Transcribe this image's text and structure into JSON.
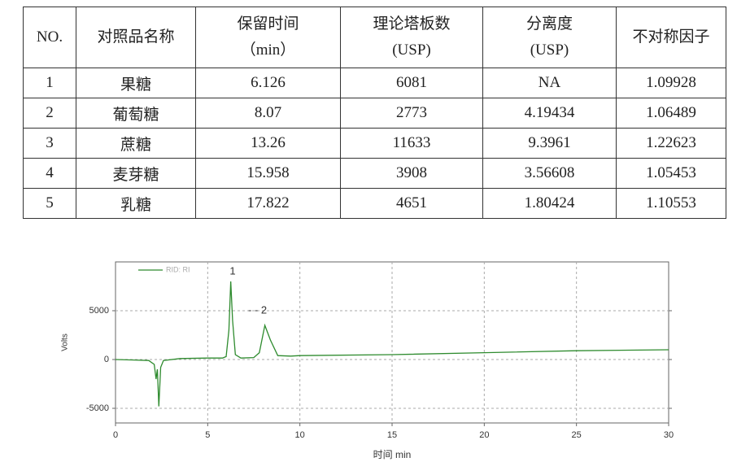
{
  "table": {
    "header": [
      [
        "NO."
      ],
      [
        "对照品名称"
      ],
      [
        "保留时间",
        "（min）"
      ],
      [
        "理论塔板数",
        "(USP)"
      ],
      [
        "分离度",
        "(USP)"
      ],
      [
        "不对称因子"
      ]
    ],
    "rows": [
      [
        "1",
        "果糖",
        "6.126",
        "6081",
        "NA",
        "1.09928"
      ],
      [
        "2",
        "葡萄糖",
        "8.07",
        "2773",
        "4.19434",
        "1.06489"
      ],
      [
        "3",
        "蔗糖",
        "13.26",
        "11633",
        "9.3961",
        "1.22623"
      ],
      [
        "4",
        "麦芽糖",
        "15.958",
        "3908",
        "3.56608",
        "1.05453"
      ],
      [
        "5",
        "乳糖",
        "17.822",
        "4651",
        "1.80424",
        "1.10553"
      ]
    ]
  },
  "chart_data": {
    "type": "line",
    "x_label": "时间 min",
    "y_label": "Volts",
    "annotations": [
      "1",
      "- - 2"
    ],
    "x": [
      0,
      1,
      1.8,
      2.1,
      2.2,
      2.27,
      2.35,
      2.45,
      2.6,
      3.5,
      5,
      5.8,
      6.0,
      6.15,
      6.25,
      6.35,
      6.5,
      6.8,
      7.5,
      7.8,
      8.1,
      8.4,
      8.8,
      9.5,
      10,
      15,
      20,
      25,
      30
    ],
    "series": [
      {
        "name": "RID: RI",
        "color": "#2e8b2e",
        "values": [
          0,
          -50,
          -100,
          -500,
          -2000,
          -1000,
          -4800,
          -800,
          -100,
          100,
          150,
          150,
          300,
          3000,
          8000,
          4000,
          500,
          150,
          200,
          700,
          3500,
          2000,
          400,
          350,
          400,
          500,
          700,
          900,
          1000
        ]
      }
    ],
    "xlim": [
      0,
      30
    ],
    "xticks": [
      0,
      5,
      10,
      15,
      20,
      25,
      30
    ],
    "ylim": [
      -6500,
      10000
    ],
    "yticks": [
      -5000,
      0,
      5000
    ],
    "grid": true
  }
}
